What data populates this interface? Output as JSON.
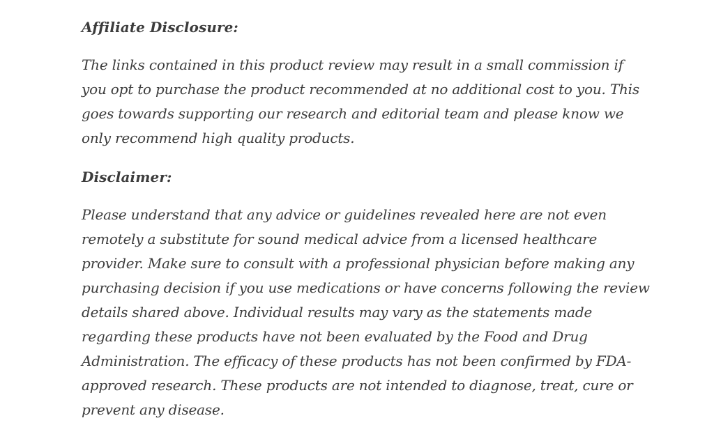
{
  "page": {
    "background_color": "#ffffff",
    "text_color": "#3c3c3c"
  },
  "sections": [
    {
      "heading": "Affiliate Disclosure:",
      "lines": [
        "The links contained in this product review may result in a small commission if",
        "you opt to purchase the product recommended at no additional cost to you. This",
        "goes towards supporting our research and editorial team and please know we",
        "only recommend high quality products."
      ]
    },
    {
      "heading": "Disclaimer:",
      "lines": [
        "Please understand that any advice or guidelines revealed here are not even",
        "remotely a substitute for sound medical advice from a licensed healthcare",
        "provider. Make sure to consult with a professional physician before making any",
        "purchasing decision if you use medications or have concerns following the review",
        "details shared above. Individual results may vary as the statements made",
        "regarding these products have not been evaluated by the Food and Drug",
        "Administration. The efficacy of these products has not been confirmed by FDA-",
        "approved research. These products are not intended to diagnose, treat, cure or",
        "prevent any disease."
      ]
    }
  ]
}
